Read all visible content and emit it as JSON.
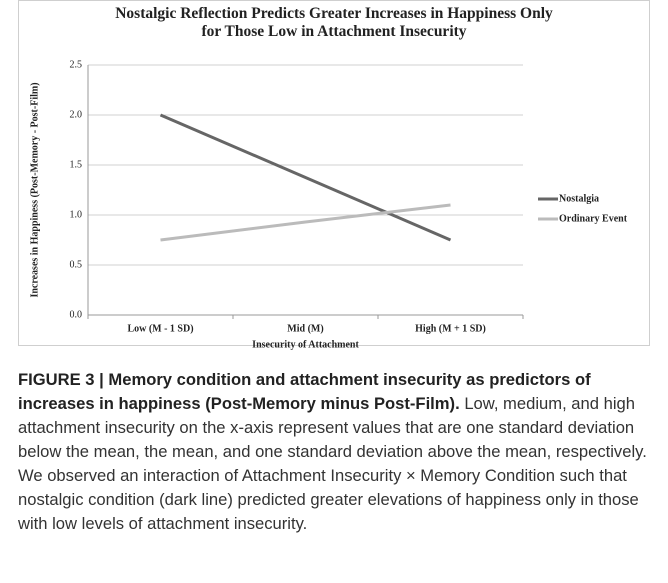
{
  "chart_data": {
    "type": "line",
    "title": "Nostalgic Reflection Predicts Greater Increases in Happiness Only for Those Low in Attachment Insecurity",
    "x_label": "Insecurity of Attachment",
    "y_label": "Increases in Happiness (Post-Memory - Post-Film)",
    "categories": [
      "Low (M - 1 SD)",
      "Mid (M)",
      "High (M + 1 SD)"
    ],
    "series": [
      {
        "name": "Nostalgia",
        "color": "#666666",
        "values": [
          2.0,
          1.375,
          0.75
        ]
      },
      {
        "name": "Ordinary Event",
        "color": "#bbbbbb",
        "values": [
          0.75,
          0.93,
          1.1
        ]
      }
    ],
    "ylim": [
      0,
      2.5
    ],
    "yticks": [
      {
        "value": 0,
        "label": "0.0"
      },
      0.5,
      {
        "value": 1,
        "label": "1.0"
      },
      1.5,
      {
        "value": 2,
        "label": "2.0"
      },
      2.5
    ],
    "grid": true,
    "legend": "right"
  },
  "caption": {
    "title": "FIGURE 3 | Memory condition and attachment insecurity as predictors of increases in happiness (Post-Memory minus Post-Film).",
    "text": "Low, medium, and high attachment insecurity on the x-axis represent values that are one standard deviation below the mean, the mean, and one standard deviation above the mean, respectively. We observed an interaction of Attachment Insecurity × Memory Condition such that nostalgic condition (dark line) predicted greater elevations of happiness only in those with low levels of attachment insecurity."
  }
}
